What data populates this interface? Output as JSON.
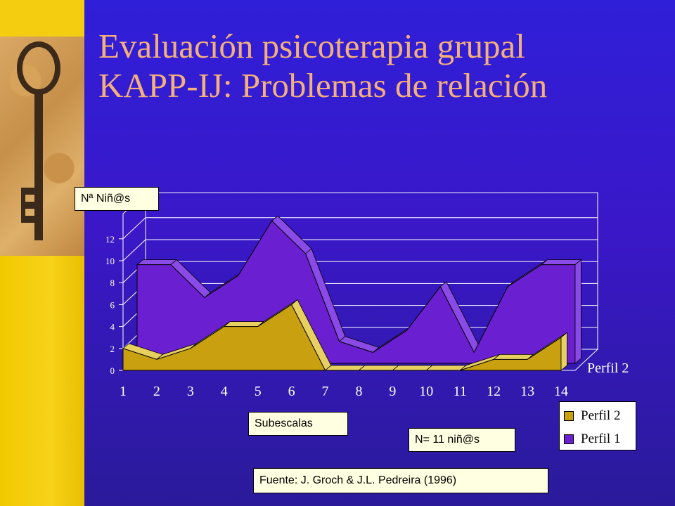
{
  "slide": {
    "title_line1": "Evaluación psicoterapia grupal",
    "title_line2": "KAPP-IJ: Problemas de relación",
    "y_axis_box": "Nª Niñ@s",
    "x_axis_box": "Subescalas",
    "n_box": "N= 11 niñ@s",
    "source_box": "Fuente: J. Groch & J.L. Pedreira (1996)",
    "depth_label": "Perfil 2"
  },
  "colors": {
    "background": "#3a18c8",
    "sidebar": "#f2c900",
    "title": "#f5b07a",
    "perfil1": "#6a1fd0",
    "perfil2": "#c8a010"
  },
  "icons": [
    "key-photo"
  ],
  "chart_data": {
    "type": "area",
    "x": [
      1,
      2,
      3,
      4,
      5,
      6,
      7,
      8,
      9,
      10,
      11,
      12,
      13,
      14
    ],
    "categories": [
      "1",
      "2",
      "3",
      "4",
      "5",
      "6",
      "7",
      "8",
      "9",
      "10",
      "11",
      "12",
      "13",
      "14"
    ],
    "series": [
      {
        "name": "Perfil 2",
        "values": [
          2,
          1,
          2,
          4,
          4,
          6,
          0,
          0,
          0,
          0,
          0,
          1,
          1,
          3
        ]
      },
      {
        "name": "Perfil 1",
        "values": [
          9,
          9,
          6,
          8,
          13,
          10,
          2,
          1,
          3,
          7,
          1,
          7,
          9,
          9
        ]
      }
    ],
    "yticks": [
      0,
      2,
      4,
      6,
      8,
      10,
      12
    ],
    "ylim": [
      0,
      13
    ],
    "grid": true,
    "legend": [
      {
        "label": "Perfil 2",
        "color": "#c8a010"
      },
      {
        "label": "Perfil 1",
        "color": "#6a1fd0"
      }
    ]
  }
}
